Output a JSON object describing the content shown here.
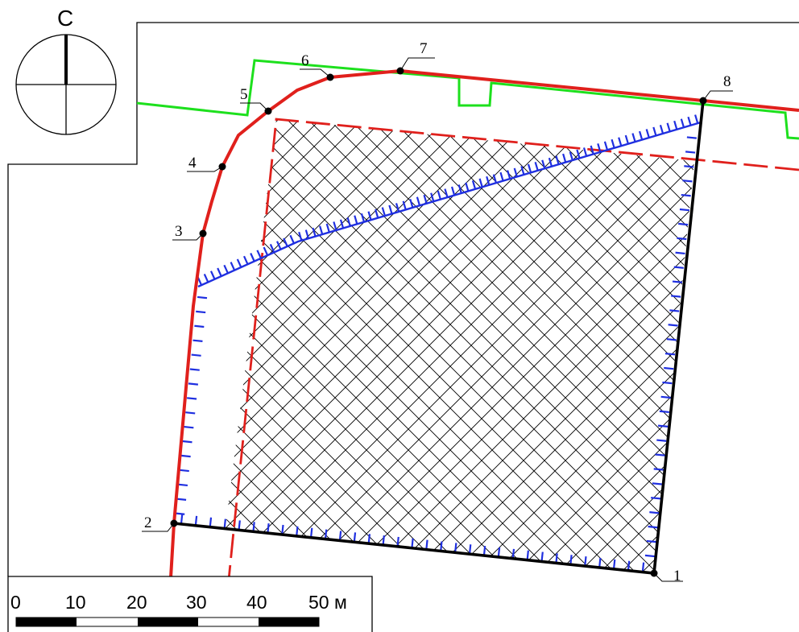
{
  "north_arrow": {
    "label": "С"
  },
  "points": [
    {
      "id": "p1",
      "label": "1"
    },
    {
      "id": "p2",
      "label": "2"
    },
    {
      "id": "p3",
      "label": "3"
    },
    {
      "id": "p4",
      "label": "4"
    },
    {
      "id": "p5",
      "label": "5"
    },
    {
      "id": "p6",
      "label": "6"
    },
    {
      "id": "p7",
      "label": "7"
    },
    {
      "id": "p8",
      "label": "8"
    }
  ],
  "scale_bar": {
    "ticks": [
      "0",
      "10",
      "20",
      "30",
      "40",
      "50 м"
    ]
  },
  "colors": {
    "boundary": "#e0201c",
    "hatch_fill": "#000000",
    "slope": "#1f2fe0",
    "green_line": "#1de01d",
    "parcel_black": "#000000"
  }
}
